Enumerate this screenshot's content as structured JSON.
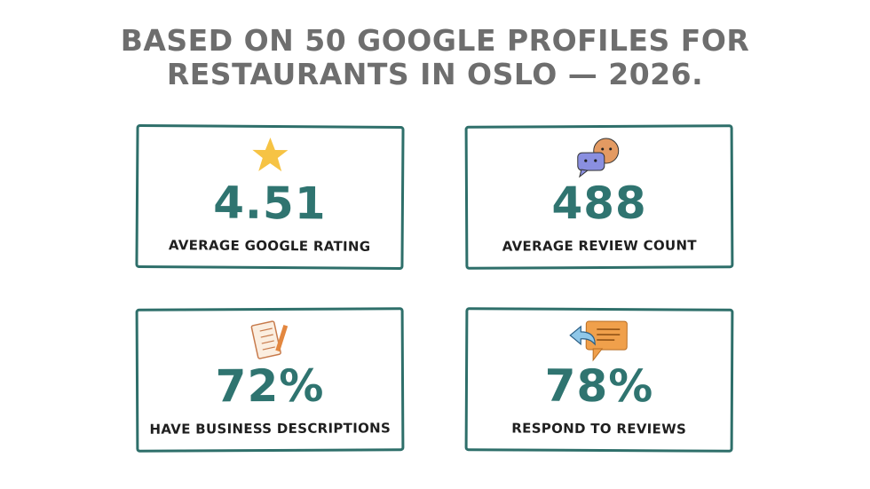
{
  "header": {
    "title_lines": [
      "BASED ON 50 GOOGLE PROFILES FOR",
      "RESTAURANTS IN OSLO — 2026."
    ]
  },
  "cards": [
    {
      "value": "4.51",
      "label": "AVERAGE GOOGLE RATING"
    },
    {
      "value": "488",
      "label": "AVERAGE REVIEW COUNT"
    },
    {
      "value": "72%",
      "label": "HAVE BUSINESS DESCRIPTIONS"
    },
    {
      "value": "78%",
      "label": "RESPOND TO REVIEWS"
    }
  ]
}
